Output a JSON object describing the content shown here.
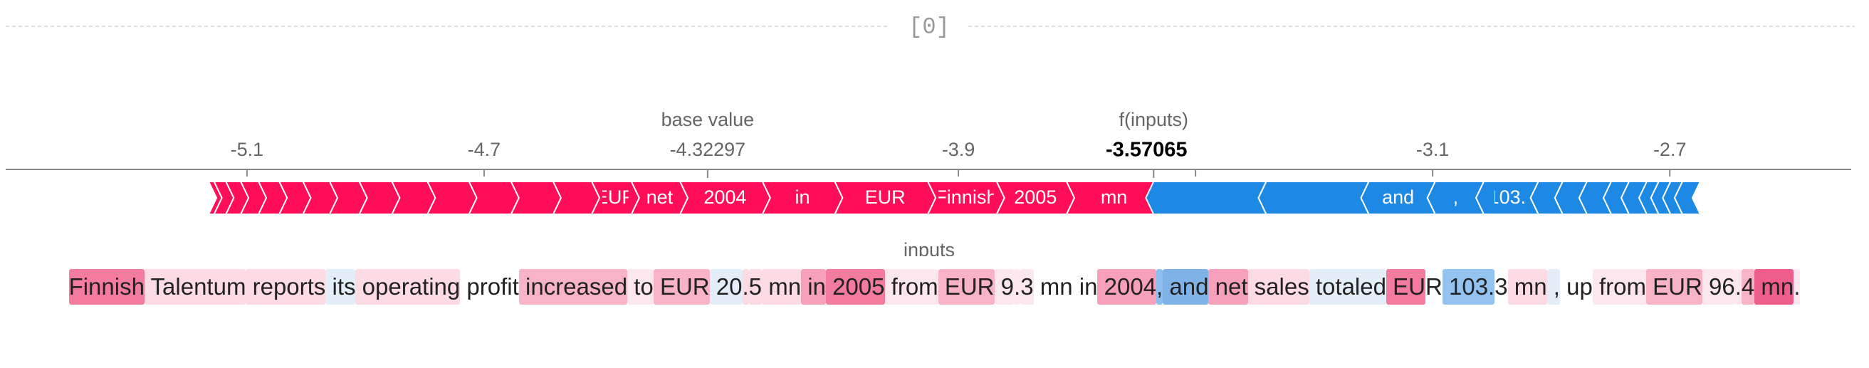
{
  "header": {
    "label": "[0]"
  },
  "chart_data": {
    "type": "force",
    "base_label": "base value",
    "output_label": "f(inputs)",
    "base_value": -4.32297,
    "output_value": -3.57065,
    "xlim": [
      -5.507,
      -2.394
    ],
    "xticks": [
      -5.1,
      -4.7,
      -3.9,
      -3.5,
      -3.1,
      -2.7
    ],
    "positive_color": "#ff0d57",
    "negative_color": "#1e88e5",
    "positive": [
      {
        "label": "mn",
        "value": 0.147
      },
      {
        "label": "2005",
        "value": 0.118
      },
      {
        "label": "Finnish",
        "value": 0.116
      },
      {
        "label": "EUR",
        "value": 0.157
      },
      {
        "label": "in",
        "value": 0.122
      },
      {
        "label": "2004",
        "value": 0.139
      },
      {
        "label": "net",
        "value": 0.082
      },
      {
        "label": "EUR",
        "value": 0.067
      },
      {
        "label": null,
        "value": 0.065
      },
      {
        "label": null,
        "value": 0.071
      },
      {
        "label": null,
        "value": 0.071
      },
      {
        "label": null,
        "value": 0.07
      },
      {
        "label": null,
        "value": 0.06
      },
      {
        "label": null,
        "value": 0.055
      },
      {
        "label": null,
        "value": 0.05
      },
      {
        "label": null,
        "value": 0.045
      },
      {
        "label": null,
        "value": 0.04
      },
      {
        "label": null,
        "value": 0.035
      },
      {
        "label": null,
        "value": 0.03
      },
      {
        "label": null,
        "value": 0.025
      },
      {
        "label": null,
        "value": 0.02
      },
      {
        "label": null,
        "value": 0.009
      }
    ],
    "negative": [
      {
        "label": null,
        "value": 0.19
      },
      {
        "label": null,
        "value": 0.173
      },
      {
        "label": "and",
        "value": 0.112
      },
      {
        "label": ",",
        "value": 0.082
      },
      {
        "label": "103.",
        "value": 0.092
      },
      {
        "label": null,
        "value": 0.041
      },
      {
        "label": null,
        "value": 0.041
      },
      {
        "label": null,
        "value": 0.041
      },
      {
        "label": null,
        "value": 0.03
      },
      {
        "label": null,
        "value": 0.03
      },
      {
        "label": null,
        "value": 0.02
      },
      {
        "label": null,
        "value": 0.02
      },
      {
        "label": null,
        "value": 0.02
      },
      {
        "label": null,
        "value": 0.03
      }
    ]
  },
  "inputs": {
    "title": "inputs",
    "tokens": [
      {
        "text": "Finnish",
        "color": "#f27b9e"
      },
      {
        "text": " Talentum",
        "color": "#fcdbe5"
      },
      {
        "text": " reports",
        "color": "#fcdbe5"
      },
      {
        "text": " its",
        "color": "#e3eef9"
      },
      {
        "text": " operating",
        "color": "#fcdbe5"
      },
      {
        "text": " profit",
        "color": "#ffffff"
      },
      {
        "text": " increased",
        "color": "#f8b3c7"
      },
      {
        "text": " to",
        "color": "#fde7ee"
      },
      {
        "text": " EUR",
        "color": "#f8b3c7"
      },
      {
        "text": " 20",
        "color": "#e3eef9"
      },
      {
        "text": ".",
        "color": "#fcdbe5"
      },
      {
        "text": "5",
        "color": "#fcdbe5"
      },
      {
        "text": " mn",
        "color": "#fcdbe5"
      },
      {
        "text": " in",
        "color": "#f6a0ba"
      },
      {
        "text": " 2005",
        "color": "#f27b9e"
      },
      {
        "text": " from",
        "color": "#fde7ee"
      },
      {
        "text": " EUR",
        "color": "#f8b3c7"
      },
      {
        "text": " 9",
        "color": "#fde7ee"
      },
      {
        "text": ".",
        "color": "#fde7ee"
      },
      {
        "text": "3",
        "color": "#fde7ee"
      },
      {
        "text": " mn",
        "color": "#ffffff"
      },
      {
        "text": " in",
        "color": "#ffffff"
      },
      {
        "text": " 2004",
        "color": "#f6a0ba"
      },
      {
        "text": ",",
        "color": "#8dbfee"
      },
      {
        "text": " and",
        "color": "#7fb3e8"
      },
      {
        "text": " net",
        "color": "#f6a0ba"
      },
      {
        "text": " sales",
        "color": "#fcdbe5"
      },
      {
        "text": " totaled",
        "color": "#e3eef9"
      },
      {
        "text": " EU",
        "color": "#f27b9e"
      },
      {
        "text": "R",
        "color": "#ffffff"
      },
      {
        "text": " 103.",
        "color": "#95c3ef"
      },
      {
        "text": "3",
        "color": "#ffffff"
      },
      {
        "text": " mn",
        "color": "#fcdbe5"
      },
      {
        "text": " ,",
        "color": "#e3eef9"
      },
      {
        "text": " up",
        "color": "#ffffff"
      },
      {
        "text": " from",
        "color": "#fde7ee"
      },
      {
        "text": " EUR",
        "color": "#f8b3c7"
      },
      {
        "text": " 96",
        "color": "#fde7ee"
      },
      {
        "text": ".",
        "color": "#fde7ee"
      },
      {
        "text": "4",
        "color": "#f8b3c7"
      },
      {
        "text": " mn",
        "color": "#ef5d8a"
      },
      {
        "text": ".",
        "color": "#fde7ee"
      }
    ]
  }
}
